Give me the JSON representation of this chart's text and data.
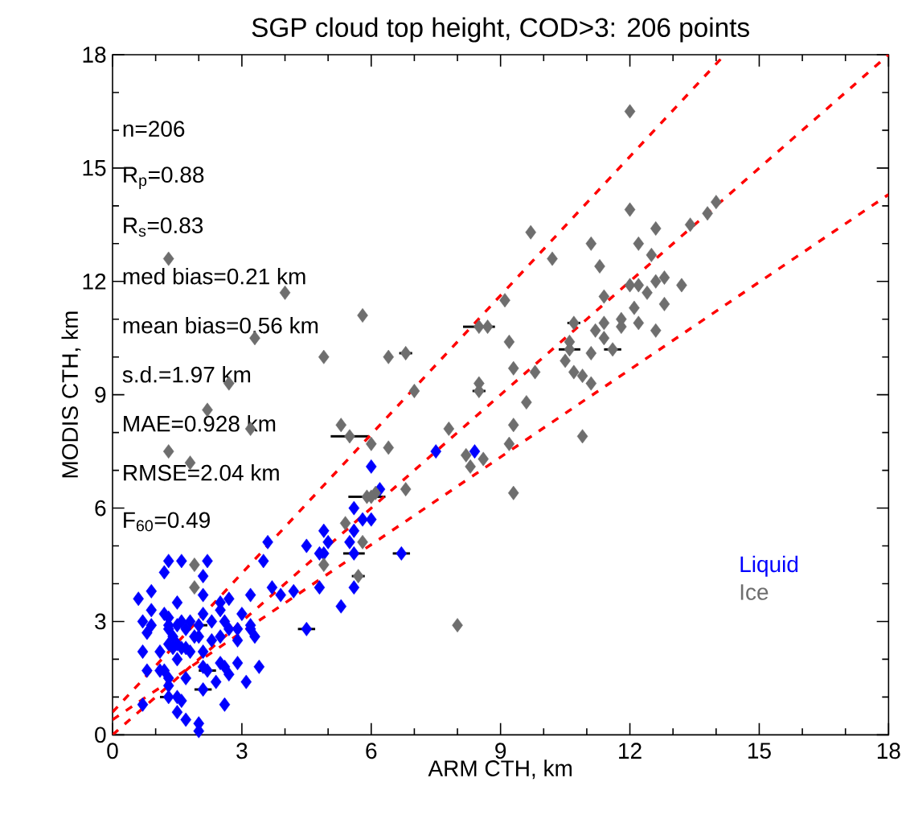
{
  "chart_data": {
    "type": "scatter",
    "title": "SGP cloud top height, COD>3: 206 points",
    "xlabel": "ARM CTH, km",
    "ylabel": "MODIS CTH, km",
    "xlim": [
      0,
      18
    ],
    "ylim": [
      0,
      18
    ],
    "xticks": [
      0,
      3,
      6,
      9,
      12,
      15,
      18
    ],
    "yticks": [
      0,
      3,
      6,
      9,
      12,
      15,
      18
    ],
    "legend": "bottom right",
    "marker": "diamond",
    "annotations": [
      "n=206",
      "R$_{p}$=0.88",
      "R$_{s}$=0.83",
      "med bias=0.21 km",
      "mean bias=0.56 km",
      "s.d.=1.97 km",
      "MAE=0.928 km",
      "RMSE=2.04 km",
      "F$_{60}$=0.49"
    ],
    "series": [
      {
        "name": "Liquid",
        "color": "#0000ff",
        "x": [
          4.5,
          5.6,
          6.7,
          2.2,
          2.1,
          1.3,
          2.0,
          3.6,
          3.5,
          4.5,
          4.9,
          4.8,
          1.3,
          1.6,
          2.2,
          1.2,
          2.1,
          2.1,
          0.6,
          0.9,
          1.5,
          3.7,
          3.9,
          4.2,
          4.8,
          5.3,
          3.2,
          2.5,
          2.7,
          0.9,
          1.2,
          1.3,
          0.7,
          0.9,
          1.6,
          1.7,
          2.1,
          2.5,
          2.7,
          3.0,
          3.2,
          3.3,
          2.9,
          1.3,
          1.4,
          0.8,
          1.9,
          1.3,
          1.5,
          1.7,
          2.0,
          2.3,
          2.5,
          2.9,
          0.7,
          1.1,
          1.4,
          1.6,
          2.5,
          2.6,
          2.9,
          3.4,
          2.1,
          0.8,
          1.1,
          1.3,
          1.2,
          1.7,
          2.7,
          2.4,
          3.1,
          1.3,
          1.5,
          1.6,
          0.7,
          2.6,
          1.5,
          1.7,
          2.0,
          2.0,
          1.3,
          1.5,
          1.8,
          2.6,
          3.2,
          2.3,
          2.1,
          1.5,
          1.8,
          6.0,
          6.2,
          5.6,
          5.8,
          6.0,
          5.6,
          5.5,
          5.0,
          4.9,
          5.6,
          7.5,
          8.4
        ],
        "values": [
          2.8,
          4.8,
          4.8,
          1.7,
          1.2,
          1.0,
          2.9,
          5.1,
          4.6,
          5.0,
          5.4,
          4.8,
          4.6,
          4.6,
          4.6,
          4.3,
          4.2,
          3.7,
          3.6,
          3.8,
          3.5,
          3.9,
          3.7,
          3.8,
          3.9,
          3.4,
          3.7,
          3.5,
          3.6,
          3.3,
          3.2,
          3.1,
          3.0,
          2.9,
          3.0,
          2.8,
          3.2,
          3.3,
          2.8,
          3.2,
          2.8,
          2.6,
          2.8,
          2.8,
          2.6,
          2.7,
          2.6,
          2.4,
          2.4,
          2.3,
          2.6,
          2.5,
          2.6,
          2.5,
          2.2,
          2.2,
          2.3,
          2.3,
          1.9,
          1.8,
          1.9,
          1.8,
          1.8,
          1.7,
          1.7,
          1.5,
          1.7,
          1.5,
          1.6,
          1.4,
          1.4,
          1.3,
          1.0,
          0.9,
          0.8,
          0.8,
          0.6,
          0.4,
          0.3,
          0.1,
          2.9,
          2.9,
          3.0,
          3.0,
          2.9,
          3.0,
          2.2,
          2.0,
          2.2,
          7.1,
          6.5,
          6.0,
          5.7,
          5.7,
          5.4,
          5.1,
          5.1,
          4.8,
          3.9,
          7.5,
          7.5
        ],
        "xerrors": [
          0.2,
          0.25,
          0.2,
          0.2,
          0.2,
          0.2,
          0.2,
          null,
          null,
          null,
          null,
          null,
          null,
          null,
          null,
          null,
          null,
          null,
          null,
          null,
          null,
          null,
          null,
          null,
          null,
          null,
          null,
          null,
          null,
          null,
          null,
          null,
          null,
          null,
          null,
          null,
          null,
          null,
          null,
          null,
          null,
          null,
          null,
          null,
          null,
          null,
          null,
          null,
          null,
          null,
          null,
          null,
          null,
          null,
          null,
          null,
          null,
          null,
          null,
          null,
          null,
          null,
          null,
          null,
          null,
          null,
          null,
          null,
          null,
          null,
          null,
          null,
          null,
          null,
          null,
          null,
          null,
          null,
          null,
          null,
          null,
          null,
          null,
          null,
          null,
          null,
          null,
          null,
          null,
          null,
          null,
          null,
          null,
          null,
          null,
          null,
          null,
          null,
          null,
          null,
          null
        ]
      },
      {
        "name": "Ice",
        "color": "#6e6e6e",
        "x": [
          5.5,
          5.9,
          8.5,
          8.5,
          10.6,
          6.8,
          11.6,
          5.7,
          10.7,
          1.3,
          4.0,
          5.8,
          3.3,
          4.9,
          6.4,
          7.0,
          2.7,
          2.2,
          3.2,
          5.3,
          6.0,
          6.4,
          1.3,
          1.8,
          6.8,
          6.1,
          9.2,
          10.6,
          10.5,
          10.7,
          10.9,
          11.1,
          11.1,
          11.2,
          11.4,
          11.4,
          11.8,
          11.8,
          12.2,
          12.1,
          12.4,
          12.8,
          12.6,
          11.4,
          11.3,
          12.0,
          12.2,
          12.6,
          12.8,
          13.2,
          11.1,
          12.2,
          12.5,
          12.6,
          12.0,
          13.4,
          13.8,
          14.0,
          12.0,
          10.9,
          9.3,
          9.8,
          8.5,
          9.6,
          9.3,
          9.2,
          7.8,
          8.2,
          8.6,
          8.3,
          9.3,
          6.0,
          5.4,
          5.8,
          4.9,
          8.0,
          1.9,
          1.9,
          9.7,
          10.2,
          9.1,
          8.7
        ],
        "values": [
          7.9,
          6.3,
          10.8,
          9.1,
          10.2,
          10.1,
          10.2,
          4.2,
          10.9,
          12.6,
          11.7,
          11.1,
          10.5,
          10.0,
          10.0,
          9.1,
          9.3,
          8.6,
          8.1,
          8.2,
          7.7,
          7.6,
          7.5,
          7.2,
          6.5,
          6.4,
          10.4,
          10.4,
          9.9,
          9.6,
          9.5,
          9.3,
          10.1,
          10.7,
          10.9,
          10.5,
          11.0,
          10.8,
          10.9,
          11.3,
          11.7,
          11.4,
          10.7,
          11.6,
          12.4,
          11.9,
          11.9,
          12.0,
          12.1,
          11.9,
          13.0,
          13.0,
          12.7,
          13.4,
          13.9,
          13.5,
          13.8,
          14.1,
          16.5,
          7.9,
          9.7,
          9.6,
          9.3,
          8.8,
          8.2,
          7.7,
          8.1,
          7.4,
          7.3,
          7.1,
          6.4,
          6.3,
          5.6,
          5.1,
          4.5,
          2.9,
          4.5,
          3.9,
          13.3,
          12.6,
          11.5,
          10.8
        ],
        "xerrors": [
          0.44,
          0.43,
          0.37,
          0.15,
          0.25,
          0.15,
          0.2,
          0.15,
          0.15,
          null,
          null,
          null,
          null,
          null,
          null,
          null,
          null,
          null,
          null,
          null,
          null,
          null,
          null,
          null,
          null,
          null,
          null,
          null,
          null,
          null,
          null,
          null,
          null,
          null,
          null,
          null,
          null,
          null,
          null,
          null,
          null,
          null,
          null,
          null,
          null,
          null,
          null,
          null,
          null,
          null,
          null,
          null,
          null,
          null,
          null,
          null,
          null,
          null,
          null,
          null,
          null,
          null,
          null,
          null,
          null,
          null,
          null,
          null,
          null,
          null,
          null,
          null,
          null,
          null,
          null,
          null,
          null,
          null,
          null,
          null,
          null,
          null
        ]
      },
      {
        "type": "line",
        "color": "#ff0000",
        "line_style": "dashed",
        "marker": "none",
        "x": [
          0,
          14.2
        ],
        "values": [
          0.6,
          18
        ]
      },
      {
        "type": "line",
        "color": "#ff0000",
        "line_style": "dashed",
        "marker": "none",
        "x": [
          0,
          18
        ],
        "values": [
          0,
          18
        ]
      },
      {
        "type": "line",
        "color": "#ff0000",
        "line_style": "dashed",
        "marker": "none",
        "x": [
          0,
          18
        ],
        "values": [
          0.4,
          14.3
        ]
      }
    ]
  }
}
